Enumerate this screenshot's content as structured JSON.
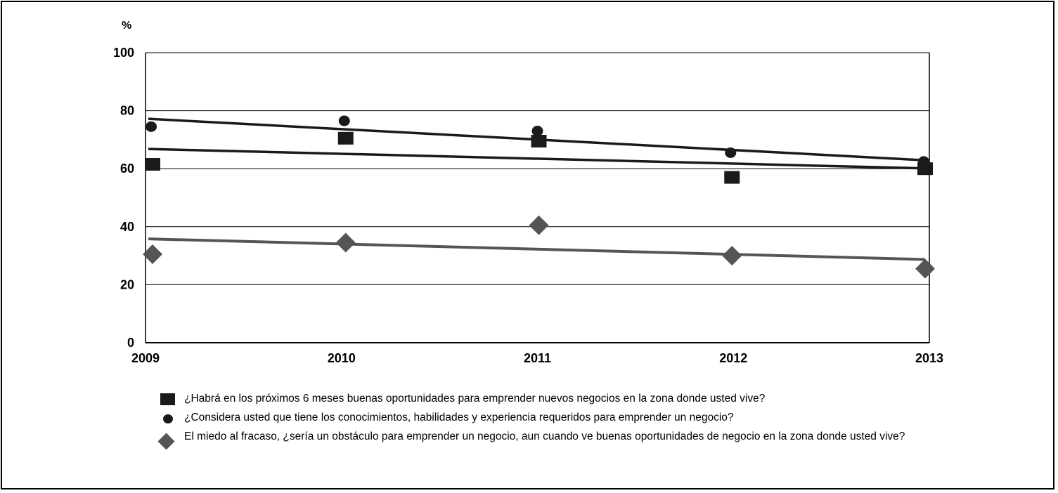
{
  "chart_data": {
    "type": "scatter",
    "y_unit_label": "%",
    "x": [
      2009,
      2010,
      2011,
      2012,
      2013
    ],
    "x_tick_labels": [
      "2009",
      "2010",
      "2011",
      "2012",
      "2013"
    ],
    "y_tick_labels": [
      "0",
      "20",
      "40",
      "60",
      "80",
      "100"
    ],
    "ylim": [
      0,
      100
    ],
    "grid": true,
    "legend_position": "bottom",
    "series": [
      {
        "name": "¿Habrá en los próximos 6 meses buenas oportunidades para emprender nuevos negocios en la zona donde usted vive?",
        "marker": "square",
        "color": "#1a1a1a",
        "values": [
          61.5,
          70.5,
          69.5,
          57,
          60
        ],
        "trendline": [
          66.8,
          60.1
        ]
      },
      {
        "name": "¿Considera usted que tiene los conocimientos, habilidades y experiencia requeridos para emprender un negocio?",
        "marker": "circle",
        "color": "#1a1a1a",
        "values": [
          74.5,
          76.5,
          73,
          65.5,
          62.5
        ],
        "trendline": [
          77.2,
          62.9
        ]
      },
      {
        "name": "El miedo al fracaso, ¿sería un obstáculo para emprender un negocio, aun cuando ve buenas oportunidades de negocio en la zona donde usted vive?",
        "marker": "diamond",
        "color": "#555555",
        "values": [
          30.5,
          34.5,
          40.5,
          30,
          25.5
        ],
        "trendline": [
          35.8,
          28.7
        ]
      }
    ]
  }
}
